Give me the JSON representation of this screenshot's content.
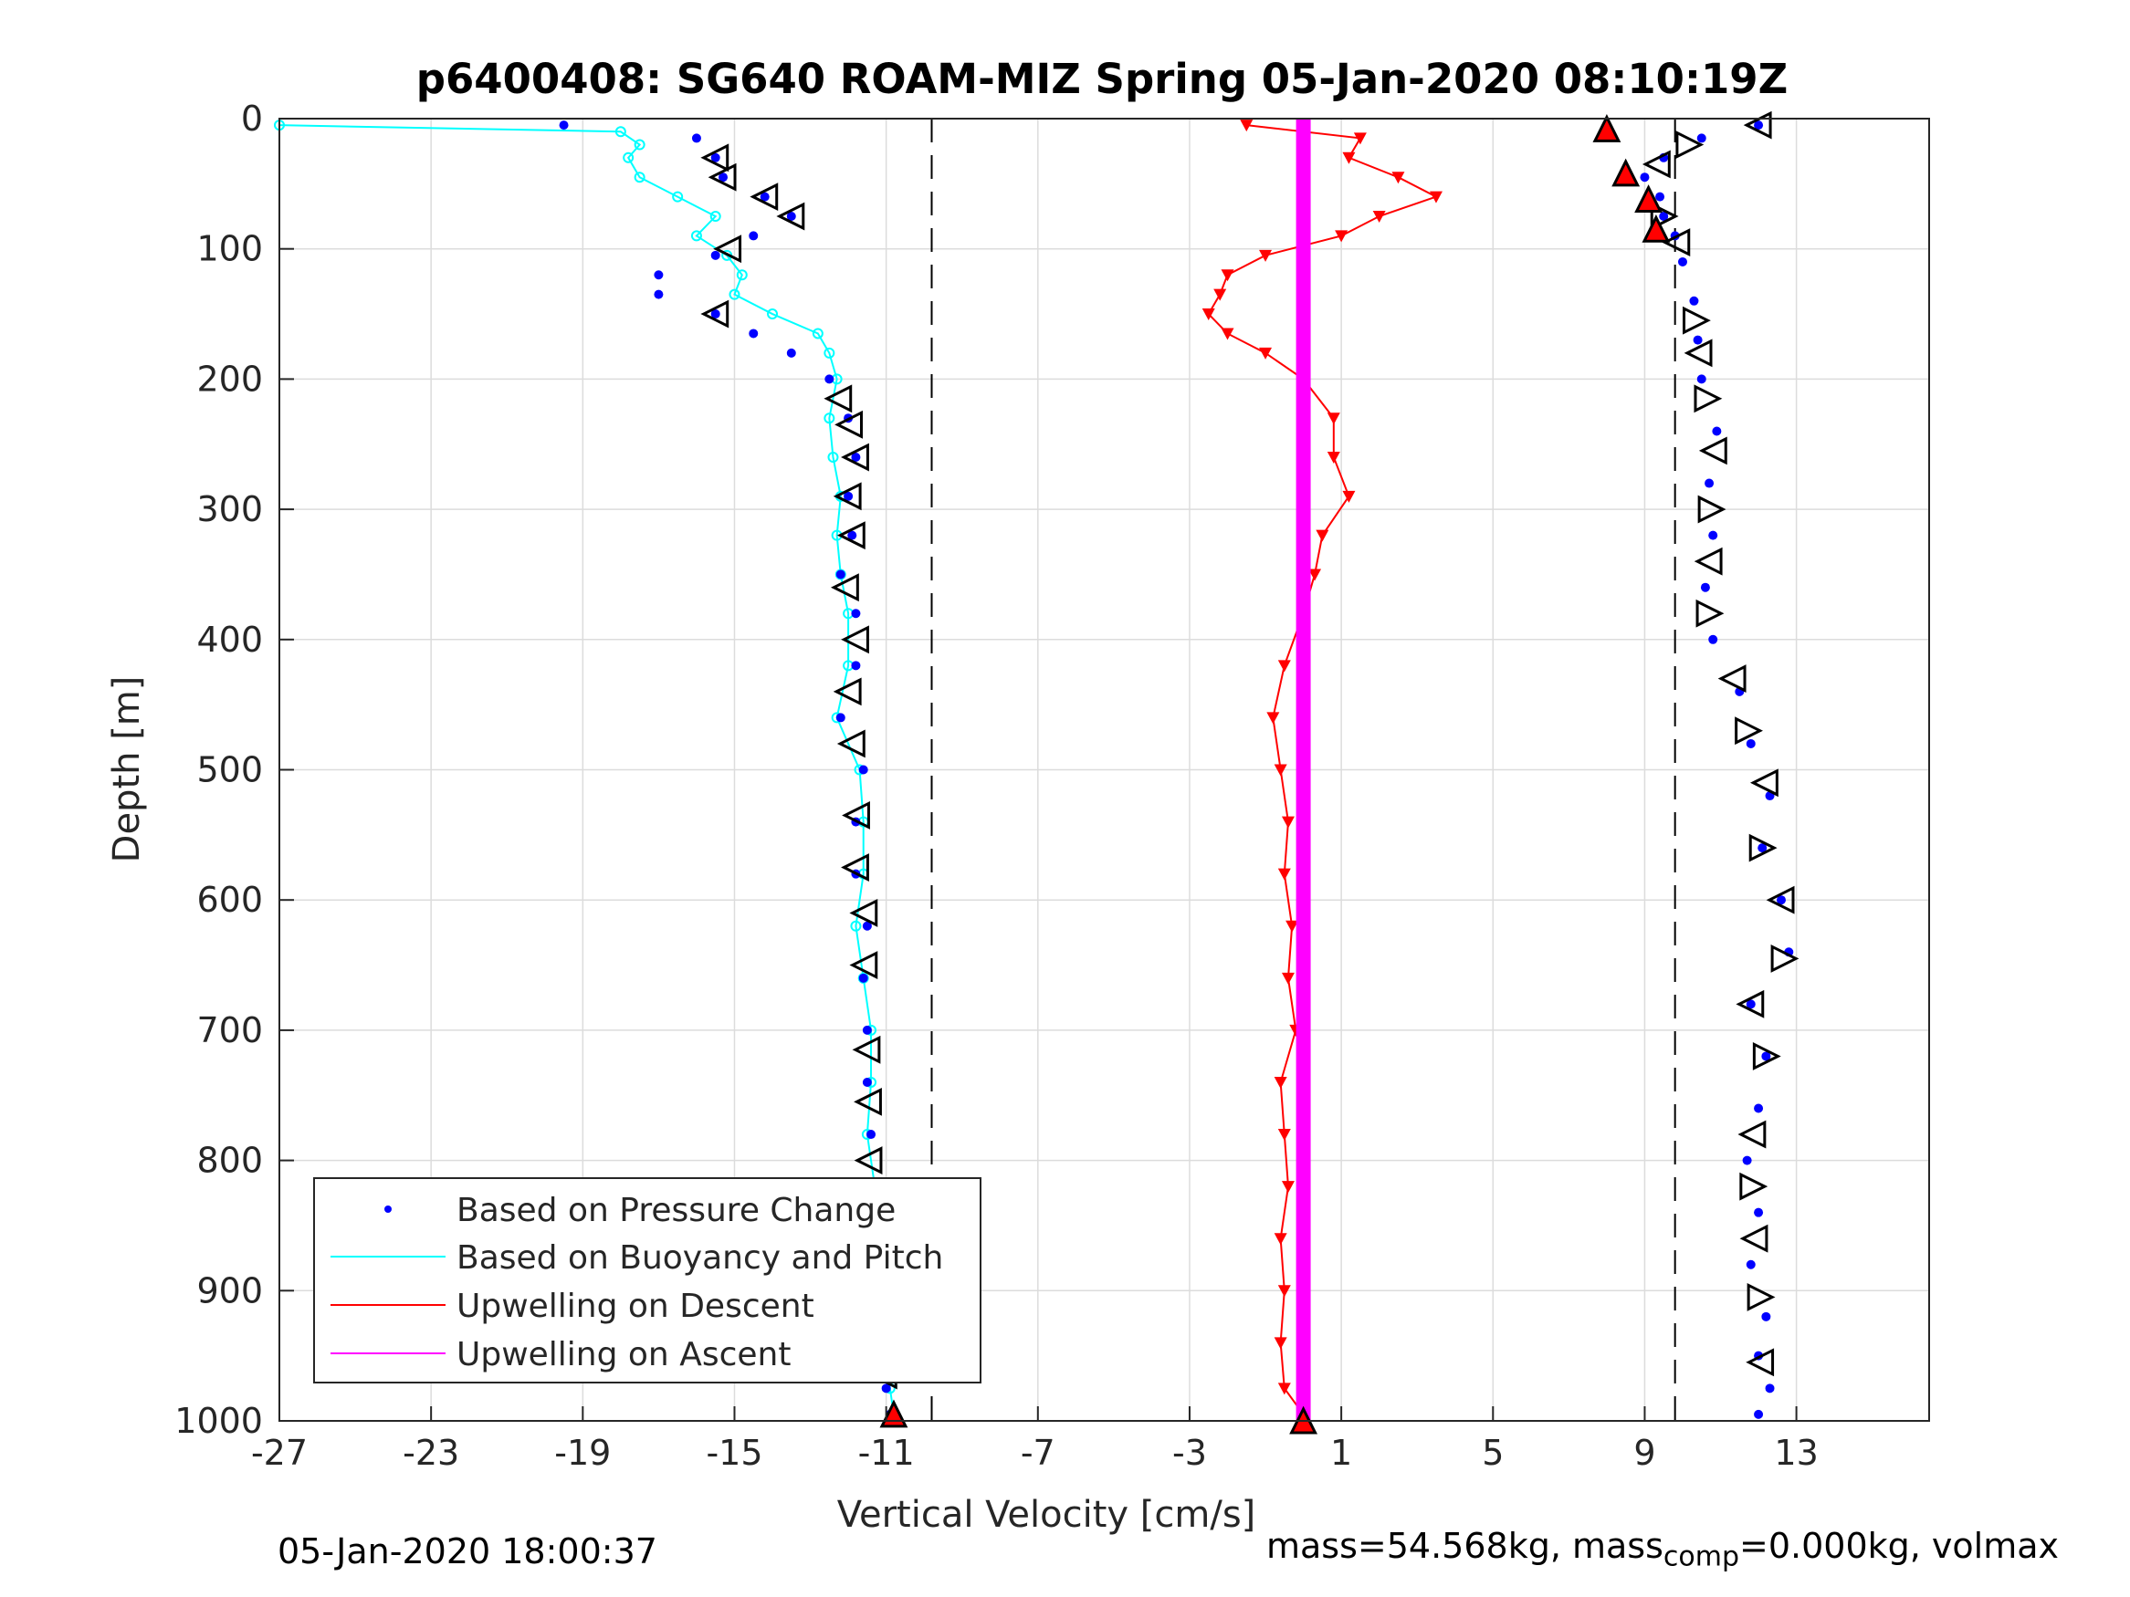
{
  "chart_data": {
    "type": "scatter",
    "title": "p6400408: SG640 ROAM-MIZ Spring 05-Jan-2020 08:10:19Z",
    "xlabel": "Vertical Velocity [cm/s]",
    "ylabel": "Depth [m]",
    "xlim": [
      -27,
      16.5
    ],
    "ylim": [
      1000,
      0
    ],
    "y_reversed": true,
    "xticks": [
      -27,
      -23,
      -19,
      -15,
      -11,
      -7,
      -3,
      1,
      5,
      9,
      13
    ],
    "yticks": [
      0,
      100,
      200,
      300,
      400,
      500,
      600,
      700,
      800,
      900,
      1000
    ],
    "grid": true,
    "legend_position": "bottom-left",
    "reference_lines_x": [
      -9.8,
      9.8
    ],
    "series": [
      {
        "name": "Based on Pressure Change",
        "color": "#0000ff",
        "style": "dots",
        "descent": {
          "depth": [
            5,
            15,
            30,
            45,
            60,
            75,
            90,
            105,
            120,
            135,
            150,
            165,
            180,
            200,
            230,
            260,
            290,
            320,
            350,
            380,
            420,
            460,
            500,
            540,
            580,
            620,
            660,
            700,
            740,
            780,
            820,
            860,
            900,
            940,
            975,
            995
          ],
          "velocity": [
            -19.5,
            -16.0,
            -15.5,
            -15.3,
            -14.2,
            -13.5,
            -14.5,
            -15.5,
            -17.0,
            -17.0,
            -15.5,
            -14.5,
            -13.5,
            -12.5,
            -12.0,
            -11.8,
            -12.0,
            -11.9,
            -12.2,
            -11.8,
            -11.8,
            -12.2,
            -11.6,
            -11.8,
            -11.8,
            -11.5,
            -11.6,
            -11.5,
            -11.5,
            -11.4,
            -11.5,
            -11.3,
            -11.3,
            -11.2,
            -11.0,
            -10.9
          ]
        },
        "ascent": {
          "depth": [
            995,
            975,
            950,
            920,
            880,
            840,
            800,
            760,
            720,
            680,
            640,
            600,
            560,
            520,
            480,
            440,
            400,
            360,
            320,
            280,
            240,
            200,
            170,
            140,
            110,
            90,
            75,
            60,
            45,
            30,
            15,
            5
          ],
          "velocity": [
            12.0,
            12.3,
            12.0,
            12.2,
            11.8,
            12.0,
            11.7,
            12.0,
            12.2,
            11.8,
            12.8,
            12.6,
            12.1,
            12.3,
            11.8,
            11.5,
            10.8,
            10.6,
            10.8,
            10.7,
            10.9,
            10.5,
            10.4,
            10.3,
            10.0,
            9.8,
            9.5,
            9.4,
            9.0,
            9.5,
            10.5,
            12.0
          ]
        }
      },
      {
        "name": "Based on Buoyancy and Pitch",
        "color": "#00ffff",
        "depth": [
          5,
          10,
          20,
          30,
          45,
          60,
          75,
          90,
          105,
          120,
          135,
          150,
          165,
          180,
          200,
          230,
          260,
          290,
          320,
          350,
          380,
          420,
          460,
          500,
          540,
          580,
          620,
          660,
          700,
          740,
          780,
          820,
          860,
          900,
          940,
          975,
          995
        ],
        "velocity": [
          -27.0,
          -18.0,
          -17.5,
          -17.8,
          -17.5,
          -16.5,
          -15.5,
          -16.0,
          -15.2,
          -14.8,
          -15.0,
          -14.0,
          -12.8,
          -12.5,
          -12.3,
          -12.5,
          -12.4,
          -12.2,
          -12.3,
          -12.2,
          -12.0,
          -12.0,
          -12.3,
          -11.7,
          -11.6,
          -11.6,
          -11.8,
          -11.6,
          -11.4,
          -11.4,
          -11.5,
          -11.3,
          -11.4,
          -11.2,
          -11.0,
          -10.9,
          -10.8
        ]
      },
      {
        "name": "Upwelling on Descent",
        "color": "#ff0000",
        "depth": [
          5,
          15,
          30,
          45,
          60,
          75,
          90,
          105,
          120,
          135,
          150,
          165,
          180,
          200,
          230,
          260,
          290,
          320,
          350,
          380,
          420,
          460,
          500,
          540,
          580,
          620,
          660,
          700,
          740,
          780,
          820,
          860,
          900,
          940,
          975,
          995
        ],
        "velocity": [
          -1.5,
          1.5,
          1.2,
          2.5,
          3.5,
          2.0,
          1.0,
          -1.0,
          -2.0,
          -2.2,
          -2.5,
          -2.0,
          -1.0,
          0.0,
          0.8,
          0.8,
          1.2,
          0.5,
          0.3,
          0.0,
          -0.5,
          -0.8,
          -0.6,
          -0.4,
          -0.5,
          -0.3,
          -0.4,
          -0.2,
          -0.6,
          -0.5,
          -0.4,
          -0.6,
          -0.5,
          -0.6,
          -0.5,
          0.0
        ]
      },
      {
        "name": "Upwelling on Ascent",
        "color": "#ff00ff",
        "depth": [
          0,
          1000
        ],
        "velocity": [
          0.0,
          0.0
        ]
      }
    ],
    "markers": [
      {
        "kind": "descent-triangle",
        "depth": [
          30,
          45,
          60,
          75,
          100,
          150,
          215,
          235,
          260,
          290,
          320,
          360,
          400,
          440,
          480,
          535,
          575,
          610,
          650,
          715,
          755,
          800,
          840,
          880,
          920,
          965
        ]
      },
      {
        "kind": "ascent-triangle",
        "depth": [
          5,
          20,
          35,
          75,
          95,
          155,
          180,
          215,
          255,
          300,
          340,
          380,
          430,
          470,
          510,
          560,
          600,
          645,
          680,
          720,
          780,
          820,
          860,
          905,
          955
        ]
      },
      {
        "kind": "apogee",
        "color": "#ff0000",
        "points": [
          {
            "velocity": -10.8,
            "depth": 995
          },
          {
            "velocity": 8.0,
            "depth": 8
          },
          {
            "velocity": 8.5,
            "depth": 42
          },
          {
            "velocity": 9.1,
            "depth": 62
          },
          {
            "velocity": 9.3,
            "depth": 85
          },
          {
            "velocity": 0.0,
            "depth": 1000
          }
        ]
      }
    ]
  },
  "legend_labels": [
    "Based on Pressure Change",
    "Based on Buoyancy and Pitch",
    "Upwelling on Descent",
    "Upwelling on Ascent"
  ],
  "footer": {
    "timestamp": "05-Jan-2020 18:00:37",
    "mass_prefix": "mass=54.568kg, mass",
    "mass_sub": "comp",
    "mass_suffix": "=0.000kg, volmax"
  }
}
